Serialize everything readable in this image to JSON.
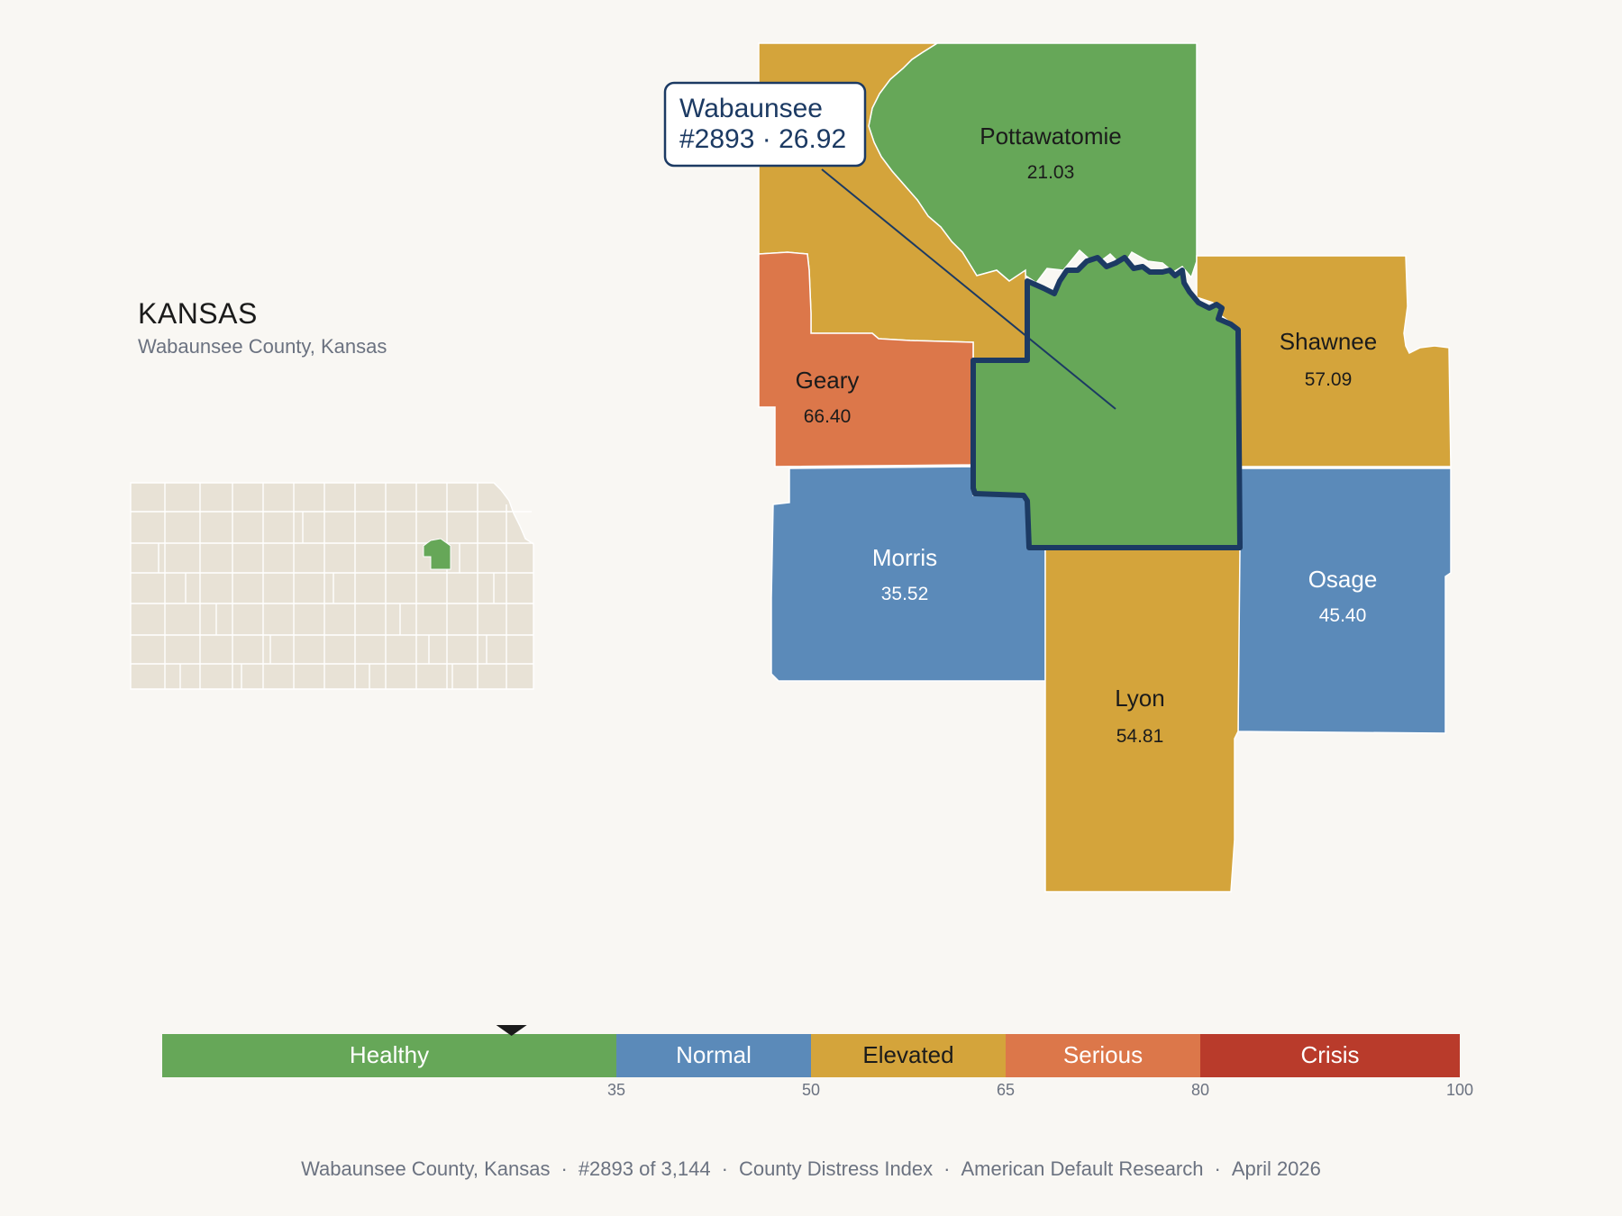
{
  "header": {
    "state_title": "KANSAS",
    "state_subtitle": "Wabaunsee County, Kansas"
  },
  "colors": {
    "background": "#f9f7f3",
    "healthy": "#66a758",
    "normal": "#5b8ab9",
    "elevated": "#d4a43b",
    "serious": "#dc774a",
    "crisis": "#b93b2b",
    "highlight_border": "#1c3a63",
    "inset_fill": "#e8e2d6"
  },
  "callout": {
    "line1": "Wabaunsee",
    "line2": "#2893 · 26.92"
  },
  "counties": [
    {
      "name": "Pottawatomie",
      "value": "21.03",
      "category": "healthy"
    },
    {
      "name": "Shawnee",
      "value": "57.09",
      "category": "elevated"
    },
    {
      "name": "Geary",
      "value": "66.40",
      "category": "serious"
    },
    {
      "name": "Morris",
      "value": "35.52",
      "category": "normal"
    },
    {
      "name": "Osage",
      "value": "45.40",
      "category": "normal"
    },
    {
      "name": "Lyon",
      "value": "54.81",
      "category": "elevated"
    },
    {
      "name": "Wabaunsee",
      "value": "26.92",
      "category": "healthy",
      "selected": true
    }
  ],
  "legend": {
    "segments": [
      {
        "label": "Healthy",
        "from": 0,
        "to": 35,
        "color": "#66a758"
      },
      {
        "label": "Normal",
        "from": 35,
        "to": 50,
        "color": "#5b8ab9"
      },
      {
        "label": "Elevated",
        "from": 50,
        "to": 65,
        "color": "#d4a43b"
      },
      {
        "label": "Serious",
        "from": 65,
        "to": 80,
        "color": "#dc774a"
      },
      {
        "label": "Crisis",
        "from": 80,
        "to": 100,
        "color": "#b93b2b"
      }
    ],
    "ticks": [
      "35",
      "50",
      "65",
      "80",
      "100"
    ],
    "marker_value": 26.92
  },
  "footer": {
    "county": "Wabaunsee County, Kansas",
    "rank": "#2893 of 3,144",
    "index": "County Distress Index",
    "source": "American Default Research",
    "date": "April 2026",
    "separator": "·"
  }
}
